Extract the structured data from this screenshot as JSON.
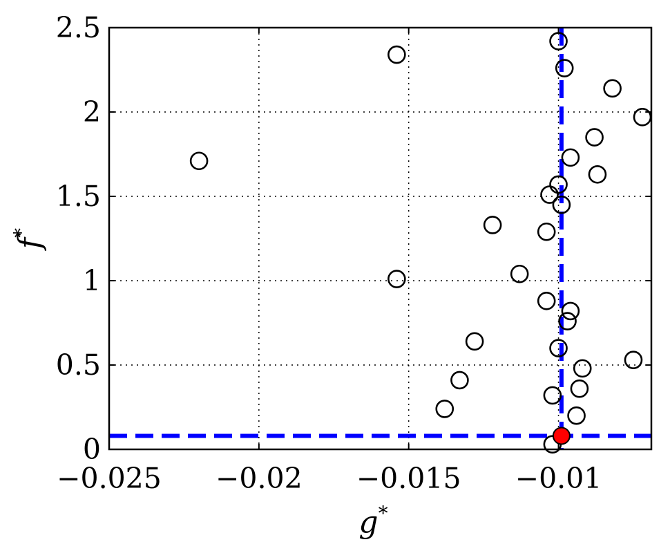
{
  "chart_data": {
    "type": "scatter",
    "title": "",
    "xlabel": "g",
    "xlabel_sup": "*",
    "ylabel": "f",
    "ylabel_sup": "*",
    "xlim": [
      -0.025,
      -0.0069
    ],
    "ylim": [
      0,
      2.5
    ],
    "xticks": [
      -0.025,
      -0.02,
      -0.015,
      -0.01
    ],
    "xtick_labels": [
      "−0.025",
      "−0.02",
      "−0.015",
      "−0.01"
    ],
    "yticks": [
      0,
      0.5,
      1,
      1.5,
      2,
      2.5
    ],
    "ytick_labels": [
      "0",
      "0.5",
      "1",
      "1.5",
      "2",
      "2.5"
    ],
    "grid": true,
    "series": [
      {
        "marker": "open-circle",
        "color": "#000000",
        "points": [
          {
            "x": -0.022,
            "y": 1.71
          },
          {
            "x": -0.0154,
            "y": 2.34
          },
          {
            "x": -0.0154,
            "y": 1.01
          },
          {
            "x": -0.0138,
            "y": 0.24
          },
          {
            "x": -0.0133,
            "y": 0.41
          },
          {
            "x": -0.0128,
            "y": 0.64
          },
          {
            "x": -0.0122,
            "y": 1.33
          },
          {
            "x": -0.0113,
            "y": 1.04
          },
          {
            "x": -0.0104,
            "y": 0.88
          },
          {
            "x": -0.0104,
            "y": 1.29
          },
          {
            "x": -0.0103,
            "y": 1.51
          },
          {
            "x": -0.0102,
            "y": 0.32
          },
          {
            "x": -0.0102,
            "y": 0.03
          },
          {
            "x": -0.01,
            "y": 1.57
          },
          {
            "x": -0.01,
            "y": 0.6
          },
          {
            "x": -0.01,
            "y": 2.42
          },
          {
            "x": -0.0099,
            "y": 1.45
          },
          {
            "x": -0.0098,
            "y": 2.26
          },
          {
            "x": -0.0097,
            "y": 0.76
          },
          {
            "x": -0.0096,
            "y": 0.82
          },
          {
            "x": -0.0096,
            "y": 1.73
          },
          {
            "x": -0.0094,
            "y": 0.2
          },
          {
            "x": -0.0093,
            "y": 0.36
          },
          {
            "x": -0.0092,
            "y": 0.48
          },
          {
            "x": -0.0088,
            "y": 1.85
          },
          {
            "x": -0.0087,
            "y": 1.63
          },
          {
            "x": -0.0082,
            "y": 2.14
          },
          {
            "x": -0.0075,
            "y": 0.53
          },
          {
            "x": -0.0072,
            "y": 1.97
          }
        ]
      },
      {
        "marker": "filled-circle",
        "color": "#ff0000",
        "points": [
          {
            "x": -0.0099,
            "y": 0.08
          }
        ]
      }
    ],
    "reference_lines": {
      "color": "#0000ff",
      "style": "dashed",
      "vertical_x": -0.0099,
      "horizontal_y": 0.08
    }
  }
}
